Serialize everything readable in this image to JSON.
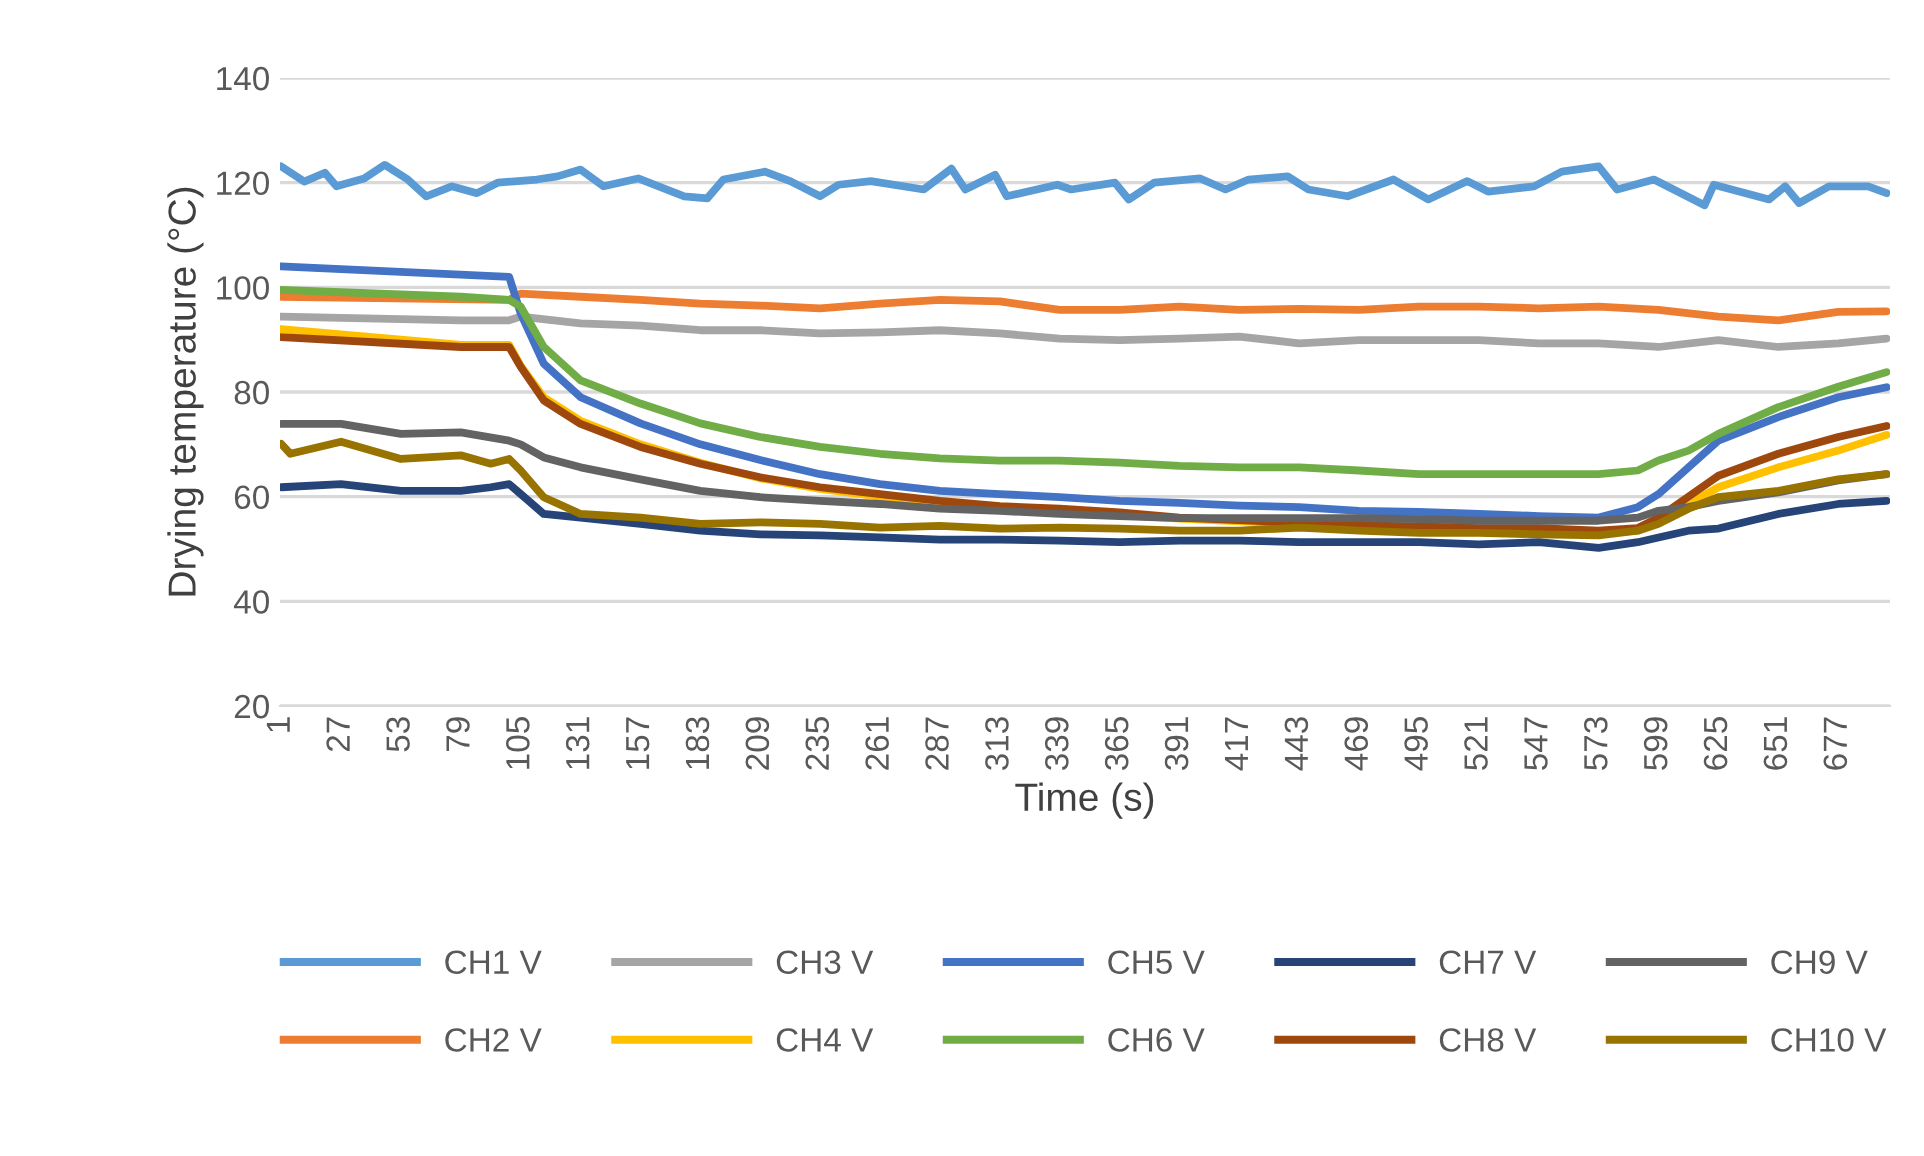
{
  "chart_data": {
    "type": "line",
    "xlabel": "Time (s)",
    "ylabel": "Drying temperature (°C)",
    "xlim": [
      0.5,
      699.5
    ],
    "xticks": [
      1,
      27,
      53,
      79,
      105,
      131,
      157,
      183,
      209,
      235,
      261,
      287,
      313,
      339,
      365,
      391,
      417,
      443,
      469,
      495,
      521,
      547,
      573,
      599,
      625,
      651,
      677
    ],
    "ylim": [
      20,
      140
    ],
    "yticks": [
      20,
      40,
      60,
      80,
      100,
      120,
      140
    ],
    "grid": "y",
    "legend": "bottom",
    "marker": "none",
    "line_style": "solid",
    "series": [
      {
        "name": "CH1 V",
        "color": "#5b9bd5",
        "x": [
          1,
          11,
          20,
          25,
          37,
          46,
          56,
          64,
          75,
          86,
          95,
          112,
          121,
          131,
          141,
          156,
          176,
          186,
          193,
          211,
          222,
          235,
          243,
          257,
          280,
          292,
          298,
          311,
          316,
          338,
          344,
          363,
          369,
          380,
          400,
          411,
          421,
          438,
          447,
          464,
          484,
          499,
          516,
          525,
          545,
          557,
          573,
          581,
          597,
          619,
          623,
          647,
          654,
          660,
          673,
          690,
          698
        ],
        "values": [
          123.1,
          120.2,
          121.9,
          119.3,
          120.8,
          123.4,
          120.6,
          117.4,
          119.3,
          118,
          120,
          120.6,
          121.2,
          122.5,
          119.3,
          120.8,
          117.4,
          117,
          120.6,
          122.1,
          120.3,
          117.4,
          119.6,
          120.3,
          118.7,
          122.7,
          118.7,
          121.5,
          117.4,
          119.6,
          118.7,
          120,
          116.8,
          120,
          120.8,
          118.7,
          120.6,
          121.2,
          118.7,
          117.4,
          120.6,
          116.8,
          120.3,
          118.3,
          119.3,
          122.1,
          123.1,
          118.7,
          120.6,
          115.7,
          119.6,
          116.8,
          119.3,
          116.1,
          119.3,
          119.3,
          118
        ]
      },
      {
        "name": "CH2 V",
        "color": "#ed7d31",
        "x": [
          1,
          100,
          105,
          131,
          157,
          183,
          209,
          235,
          261,
          287,
          313,
          339,
          365,
          391,
          417,
          443,
          469,
          495,
          521,
          547,
          573,
          599,
          625,
          651,
          677,
          698
        ],
        "values": [
          98.2,
          97.6,
          98.8,
          98.2,
          97.6,
          96.9,
          96.5,
          96,
          96.9,
          97.6,
          97.3,
          95.7,
          95.7,
          96.3,
          95.7,
          95.9,
          95.7,
          96.3,
          96.3,
          96,
          96.3,
          95.7,
          94.4,
          93.7,
          95.3,
          95.4
        ]
      },
      {
        "name": "CH3 V",
        "color": "#a5a5a5",
        "x": [
          1,
          79,
          100,
          105,
          131,
          157,
          183,
          209,
          235,
          261,
          287,
          313,
          339,
          365,
          391,
          417,
          443,
          469,
          495,
          521,
          547,
          573,
          599,
          625,
          651,
          677,
          698
        ],
        "values": [
          94.4,
          93.7,
          93.7,
          94.4,
          93.1,
          92.7,
          91.8,
          91.8,
          91.2,
          91.4,
          91.8,
          91.2,
          90.2,
          89.9,
          90.2,
          90.6,
          89.3,
          89.9,
          89.9,
          89.9,
          89.3,
          89.3,
          88.6,
          89.9,
          88.6,
          89.3,
          90.2
        ]
      },
      {
        "name": "CH4 V",
        "color": "#ffc000",
        "x": [
          1,
          79,
          100,
          105,
          115,
          131,
          157,
          183,
          209,
          235,
          261,
          287,
          313,
          339,
          365,
          391,
          417,
          443,
          469,
          495,
          521,
          547,
          573,
          590,
          599,
          612,
          625,
          651,
          677,
          698
        ],
        "values": [
          92,
          89,
          89,
          85,
          79,
          74.5,
          70,
          66.5,
          63.5,
          61.5,
          60,
          58.8,
          57.8,
          57,
          56.5,
          55.8,
          55.3,
          54.8,
          54.3,
          54,
          53.8,
          53.6,
          53,
          53.5,
          55,
          58.6,
          61.8,
          65.6,
          68.8,
          71.8
        ]
      },
      {
        "name": "CH5 V",
        "color": "#4472c4",
        "x": [
          1,
          100,
          105,
          115,
          131,
          157,
          183,
          209,
          235,
          261,
          287,
          313,
          339,
          365,
          391,
          417,
          443,
          469,
          495,
          521,
          547,
          573,
          590,
          599,
          612,
          625,
          651,
          677,
          698
        ],
        "values": [
          104,
          102,
          95,
          85.4,
          79,
          74,
          70,
          67,
          64.3,
          62.4,
          61.1,
          60.5,
          59.9,
          59.2,
          58.8,
          58.3,
          58,
          57.3,
          57.1,
          56.7,
          56.3,
          56,
          58,
          60.5,
          65.6,
          70.7,
          75.2,
          79,
          80.9
        ]
      },
      {
        "name": "CH6 V",
        "color": "#70ad47",
        "x": [
          1,
          79,
          100,
          105,
          115,
          131,
          157,
          183,
          209,
          235,
          261,
          287,
          313,
          339,
          365,
          391,
          417,
          443,
          469,
          495,
          521,
          547,
          573,
          590,
          599,
          612,
          625,
          651,
          677,
          698
        ],
        "values": [
          99.5,
          98.2,
          97.6,
          96.3,
          88.6,
          82.2,
          77.8,
          74,
          71.4,
          69.5,
          68.2,
          67.3,
          66.9,
          66.9,
          66.5,
          65.9,
          65.6,
          65.6,
          65,
          64.3,
          64.3,
          64.3,
          64.3,
          65,
          66.9,
          68.8,
          72,
          77.1,
          81,
          83.8
        ]
      },
      {
        "name": "CH7 V",
        "color": "#264478",
        "x": [
          1,
          27,
          53,
          79,
          92,
          100,
          105,
          115,
          131,
          157,
          183,
          209,
          235,
          261,
          287,
          313,
          339,
          365,
          391,
          417,
          443,
          469,
          495,
          521,
          547,
          573,
          590,
          599,
          612,
          625,
          651,
          677,
          698
        ],
        "values": [
          61.8,
          62.4,
          61.1,
          61.1,
          61.8,
          62.4,
          60.5,
          56.7,
          56,
          54.8,
          53.5,
          52.8,
          52.6,
          52.2,
          51.8,
          51.8,
          51.6,
          51.3,
          51.6,
          51.6,
          51.3,
          51.3,
          51.3,
          50.9,
          51.3,
          50.2,
          51.3,
          52.2,
          53.5,
          53.9,
          56.7,
          58.6,
          59.2
        ]
      },
      {
        "name": "CH8 V",
        "color": "#9e480e",
        "x": [
          1,
          79,
          100,
          105,
          115,
          131,
          157,
          183,
          209,
          235,
          261,
          287,
          313,
          339,
          365,
          391,
          417,
          443,
          469,
          495,
          521,
          547,
          573,
          590,
          599,
          612,
          625,
          651,
          677,
          698
        ],
        "values": [
          90.5,
          88.6,
          88.6,
          84.8,
          78.4,
          73.9,
          69.5,
          66.3,
          63.7,
          61.8,
          60.5,
          59.2,
          58.2,
          57.7,
          57,
          56,
          55.5,
          55,
          54.5,
          54.3,
          54,
          54,
          53.5,
          54,
          56,
          60,
          64,
          68.2,
          71.4,
          73.5
        ]
      },
      {
        "name": "CH9 V",
        "color": "#636363",
        "x": [
          1,
          27,
          53,
          79,
          100,
          105,
          115,
          131,
          157,
          183,
          209,
          235,
          261,
          287,
          313,
          339,
          365,
          391,
          417,
          443,
          469,
          495,
          521,
          547,
          573,
          590,
          599,
          612,
          625,
          651,
          677,
          698
        ],
        "values": [
          73.9,
          73.9,
          72,
          72.3,
          70.7,
          70,
          67.5,
          65.6,
          63.3,
          61.1,
          59.9,
          59.2,
          58.6,
          57.7,
          57.3,
          56.7,
          56.3,
          55.9,
          55.9,
          55.9,
          55.9,
          55.7,
          55.4,
          55.4,
          55.4,
          56,
          57.3,
          58,
          59.2,
          60.8,
          63.1,
          64.3
        ]
      },
      {
        "name": "CH10 V",
        "color": "#997300",
        "x": [
          1,
          5,
          27,
          53,
          79,
          92,
          100,
          105,
          115,
          131,
          157,
          183,
          209,
          235,
          261,
          287,
          313,
          339,
          365,
          391,
          417,
          443,
          469,
          495,
          521,
          547,
          573,
          590,
          599,
          612,
          625,
          651,
          677,
          698
        ],
        "values": [
          70.1,
          68.2,
          70.5,
          67.2,
          67.9,
          66.3,
          67.2,
          65,
          59.9,
          56.7,
          56,
          54.8,
          55.1,
          54.8,
          54.1,
          54.4,
          53.9,
          54.1,
          53.9,
          53.5,
          53.5,
          54.1,
          53.5,
          53.1,
          53.1,
          52.8,
          52.6,
          53.5,
          54.8,
          57.7,
          59.9,
          61.1,
          63.3,
          64.3
        ]
      }
    ]
  }
}
